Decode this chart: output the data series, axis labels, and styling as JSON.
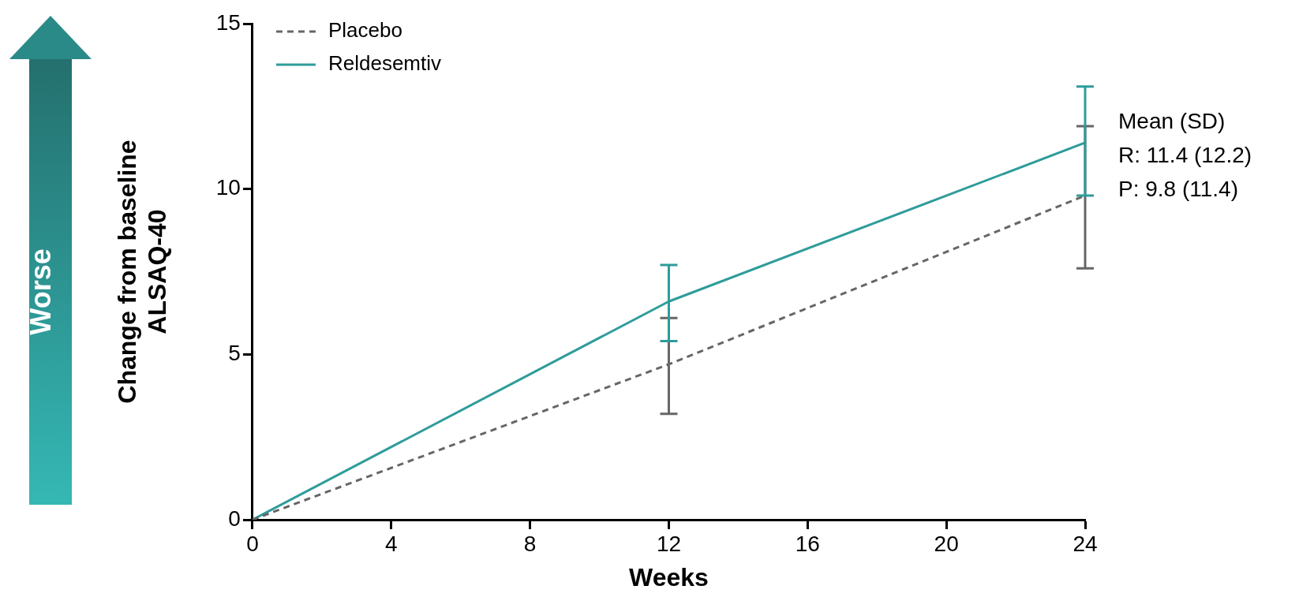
{
  "chart_data": {
    "type": "line",
    "xlabel": "Weeks",
    "ylabel": "Change from baseline\nALSAQ-40",
    "x": [
      0,
      12,
      24
    ],
    "xlim": [
      0,
      24
    ],
    "xticks": [
      0,
      4,
      8,
      12,
      16,
      20,
      24
    ],
    "ylim": [
      0,
      15
    ],
    "yticks": [
      0,
      5,
      10,
      15
    ],
    "grid": false,
    "legend": "top left",
    "marker": "none",
    "series": [
      {
        "name": "Placebo",
        "color": "#666666",
        "line_style": "dashed",
        "values": [
          0,
          4.7,
          9.8
        ],
        "errors": [
          null,
          [
            3.2,
            6.1
          ],
          [
            7.6,
            11.9
          ]
        ]
      },
      {
        "name": "Reldesemtiv",
        "color": "#2e9c9a",
        "line_style": "solid",
        "values": [
          0,
          6.6,
          11.4
        ],
        "errors": [
          null,
          [
            5.4,
            7.7
          ],
          [
            9.8,
            13.1
          ]
        ]
      }
    ],
    "annotations": [
      "Worse",
      "Mean (SD)",
      "R: 11.4 (12.2)",
      "P: 9.8 (11.4)"
    ]
  }
}
